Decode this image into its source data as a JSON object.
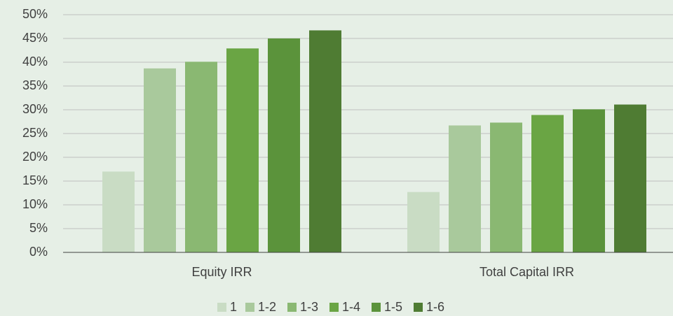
{
  "chart_data": {
    "type": "bar",
    "categories": [
      "Equity IRR",
      "Total Capital IRR"
    ],
    "series": [
      {
        "name": "1",
        "color": "#c9dcc4",
        "values": [
          17,
          12.7
        ]
      },
      {
        "name": "1-2",
        "color": "#a9c99c",
        "values": [
          38.7,
          26.7
        ]
      },
      {
        "name": "1-3",
        "color": "#8ab872",
        "values": [
          40.1,
          27.3
        ]
      },
      {
        "name": "1-4",
        "color": "#6aa544",
        "values": [
          42.9,
          28.9
        ]
      },
      {
        "name": "1-5",
        "color": "#5b933b",
        "values": [
          45,
          30.1
        ]
      },
      {
        "name": "1-6",
        "color": "#4f7c33",
        "values": [
          46.7,
          31.1
        ]
      }
    ],
    "ylim": [
      0,
      50
    ],
    "yticks": [
      {
        "value": 0,
        "label": "0%"
      },
      {
        "value": 5,
        "label": "5%"
      },
      {
        "value": 10,
        "label": "10%"
      },
      {
        "value": 15,
        "label": "15%"
      },
      {
        "value": 20,
        "label": "20%"
      },
      {
        "value": 25,
        "label": "25%"
      },
      {
        "value": 30,
        "label": "30%"
      },
      {
        "value": 35,
        "label": "35%"
      },
      {
        "value": 40,
        "label": "40%"
      },
      {
        "value": 45,
        "label": "45%"
      },
      {
        "value": 50,
        "label": "50%"
      }
    ],
    "grid": true,
    "legend": "bottom"
  }
}
